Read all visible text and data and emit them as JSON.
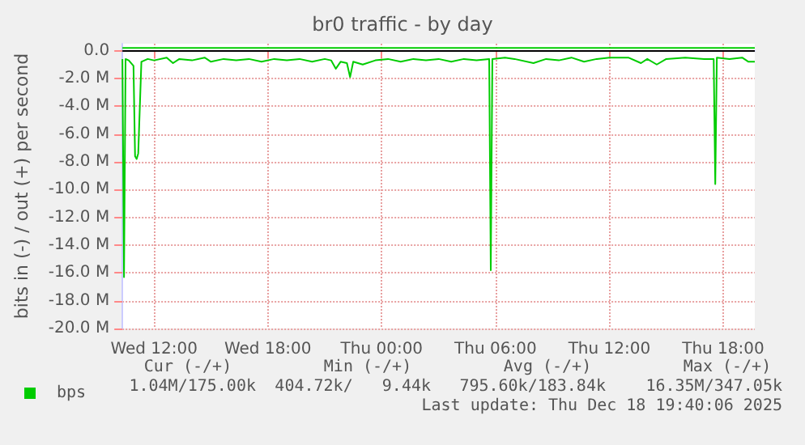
{
  "chart_data": {
    "type": "line",
    "title": "br0 traffic - by day",
    "ylabel": "bits in (-) / out (+) per second",
    "xlim": [
      "2025-12-17T10:20",
      "2025-12-18T19:40"
    ],
    "xticks": [
      {
        "value": "2025-12-17T12:00",
        "label": "Wed 12:00"
      },
      {
        "value": "2025-12-17T18:00",
        "label": "Wed 18:00"
      },
      {
        "value": "2025-12-18T00:00",
        "label": "Thu 00:00"
      },
      {
        "value": "2025-12-18T06:00",
        "label": "Thu 06:00"
      },
      {
        "value": "2025-12-18T12:00",
        "label": "Thu 12:00"
      },
      {
        "value": "2025-12-18T18:00",
        "label": "Thu 18:00"
      }
    ],
    "ylim": [
      -20,
      0.5
    ],
    "yticks": [
      {
        "value": 0,
        "label": "0.0"
      },
      {
        "value": -2,
        "label": "-2.0 M"
      },
      {
        "value": -4,
        "label": "-4.0 M"
      },
      {
        "value": -6,
        "label": "-6.0 M"
      },
      {
        "value": -8,
        "label": "-8.0 M"
      },
      {
        "value": -10,
        "label": "-10.0 M"
      },
      {
        "value": -12,
        "label": "-12.0 M"
      },
      {
        "value": -14,
        "label": "-14.0 M"
      },
      {
        "value": -16,
        "label": "-16.0 M"
      },
      {
        "value": -18,
        "label": "-18.0 M"
      },
      {
        "value": -20,
        "label": "-20.0 M"
      }
    ],
    "grid": true,
    "legend": "bottom left",
    "marker": "none",
    "line_style": "solid",
    "ref_lines": [
      {
        "axis": "y",
        "value": 0,
        "color": "#000000"
      }
    ],
    "series": [
      {
        "name": "bps",
        "color": "#00cc00",
        "x": [
          "2025-12-17T10:20",
          "2025-12-17T10:25",
          "2025-12-17T10:30",
          "2025-12-17T10:40",
          "2025-12-17T10:55",
          "2025-12-17T11:00",
          "2025-12-17T11:05",
          "2025-12-17T11:10",
          "2025-12-17T11:20",
          "2025-12-17T11:40",
          "2025-12-17T12:00",
          "2025-12-17T12:40",
          "2025-12-17T13:00",
          "2025-12-17T13:20",
          "2025-12-17T14:00",
          "2025-12-17T14:40",
          "2025-12-17T15:00",
          "2025-12-17T15:40",
          "2025-12-17T16:20",
          "2025-12-17T17:00",
          "2025-12-17T17:40",
          "2025-12-17T18:20",
          "2025-12-17T19:00",
          "2025-12-17T19:40",
          "2025-12-17T20:20",
          "2025-12-17T21:00",
          "2025-12-17T21:20",
          "2025-12-17T21:35",
          "2025-12-17T21:50",
          "2025-12-17T22:10",
          "2025-12-17T22:20",
          "2025-12-17T22:30",
          "2025-12-17T23:00",
          "2025-12-17T23:40",
          "2025-12-18T00:20",
          "2025-12-18T01:00",
          "2025-12-18T01:40",
          "2025-12-18T02:20",
          "2025-12-18T03:00",
          "2025-12-18T03:40",
          "2025-12-18T04:20",
          "2025-12-18T05:00",
          "2025-12-18T05:40",
          "2025-12-18T05:45",
          "2025-12-18T05:50",
          "2025-12-18T06:30",
          "2025-12-18T07:00",
          "2025-12-18T08:00",
          "2025-12-18T08:40",
          "2025-12-18T09:20",
          "2025-12-18T10:00",
          "2025-12-18T10:40",
          "2025-12-18T11:20",
          "2025-12-18T12:00",
          "2025-12-18T13:00",
          "2025-12-18T13:40",
          "2025-12-18T14:00",
          "2025-12-18T14:30",
          "2025-12-18T15:00",
          "2025-12-18T16:00",
          "2025-12-18T17:00",
          "2025-12-18T17:30",
          "2025-12-18T17:35",
          "2025-12-18T17:40",
          "2025-12-18T18:20",
          "2025-12-18T19:00",
          "2025-12-18T19:20",
          "2025-12-18T19:40"
        ],
        "values": [
          -0.6,
          -16.3,
          -0.6,
          -0.7,
          -1.1,
          -7.6,
          -7.8,
          -7.4,
          -0.8,
          -0.6,
          -0.7,
          -0.5,
          -0.9,
          -0.6,
          -0.7,
          -0.5,
          -0.8,
          -0.6,
          -0.7,
          -0.6,
          -0.8,
          -0.6,
          -0.7,
          -0.6,
          -0.8,
          -0.6,
          -0.7,
          -1.3,
          -0.8,
          -0.9,
          -1.9,
          -0.8,
          -1.0,
          -0.7,
          -0.6,
          -0.8,
          -0.6,
          -0.7,
          -0.6,
          -0.8,
          -0.6,
          -0.7,
          -0.6,
          -15.8,
          -0.6,
          -0.5,
          -0.6,
          -0.9,
          -0.6,
          -0.7,
          -0.5,
          -0.8,
          -0.6,
          -0.5,
          -0.5,
          -0.9,
          -0.6,
          -1.0,
          -0.6,
          -0.5,
          -0.6,
          -0.6,
          -9.6,
          -0.5,
          -0.6,
          -0.5,
          -0.8,
          -0.8
        ]
      },
      {
        "color": "#00cc00",
        "x": [
          "2025-12-17T10:20",
          "2025-12-17T14:00",
          "2025-12-17T18:00",
          "2025-12-17T22:00",
          "2025-12-18T02:00",
          "2025-12-18T06:00",
          "2025-12-18T10:00",
          "2025-12-18T14:00",
          "2025-12-18T18:00",
          "2025-12-18T19:40"
        ],
        "values": [
          0.2,
          0.2,
          0.2,
          0.2,
          0.2,
          0.2,
          0.2,
          0.2,
          0.2,
          0.2
        ]
      }
    ],
    "annotations": [
      "Cur (-/+)",
      "Min (-/+)",
      "Avg (-/+)",
      "Max (-/+)",
      "1.04M/175.00k",
      "404.72k/   9.44k",
      "795.60k/183.84k",
      "16.35M/347.05k",
      "Last update: Thu Dec 18 19:40:06 2025"
    ]
  }
}
